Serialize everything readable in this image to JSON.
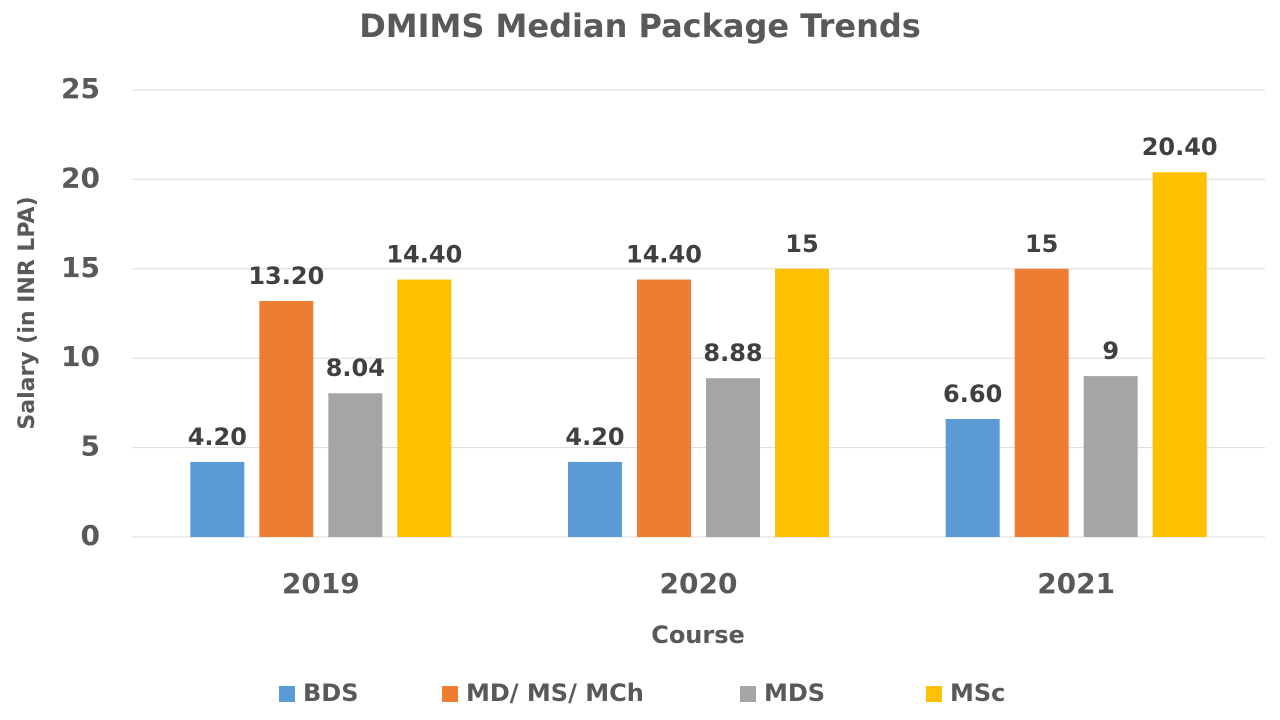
{
  "chart_data": {
    "type": "bar",
    "title": "DMIMS Median Package Trends",
    "x_label": "Course",
    "y_label": "Salary (in INR LPA)",
    "categories": [
      "2019",
      "2020",
      "2021"
    ],
    "series": [
      {
        "name": "BDS",
        "color": "#5b9bd5",
        "values": [
          4.2,
          4.2,
          6.6
        ],
        "value_labels": [
          "4.20",
          "4.20",
          "6.60"
        ]
      },
      {
        "name": "MD/ MS/ MCh",
        "color": "#ed7d31",
        "values": [
          13.2,
          14.4,
          15
        ],
        "value_labels": [
          "13.20",
          "14.40",
          "15"
        ]
      },
      {
        "name": "MDS",
        "color": "#a5a5a5",
        "values": [
          8.04,
          8.88,
          9
        ],
        "value_labels": [
          "8.04",
          "8.88",
          "9"
        ]
      },
      {
        "name": "MSc",
        "color": "#ffc000",
        "values": [
          14.4,
          15,
          20.4
        ],
        "value_labels": [
          "14.40",
          "15",
          "20.40"
        ]
      }
    ],
    "ylim": [
      0,
      25
    ],
    "yticks": [
      0,
      5,
      10,
      15,
      20,
      25
    ],
    "grid": true,
    "legend": "bottom"
  }
}
